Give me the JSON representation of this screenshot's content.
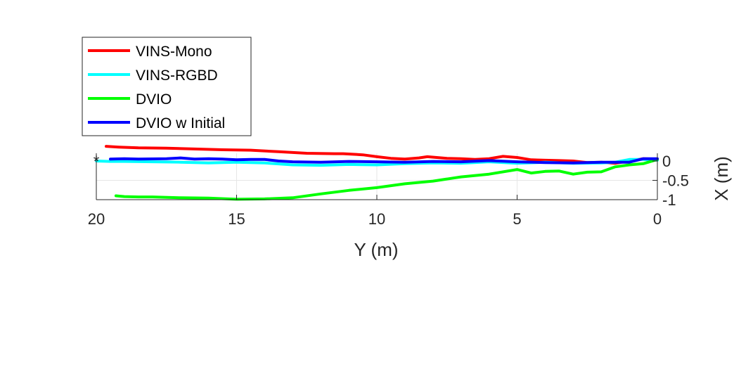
{
  "chart_data": {
    "type": "line",
    "title": "",
    "xlabel": "Y (m)",
    "ylabel": "X (m)",
    "x_reversed": true,
    "y_axis_position": "right",
    "xlim": [
      0,
      20
    ],
    "ylim": [
      -1,
      0.2
    ],
    "xticks": [
      20,
      15,
      10,
      5,
      0
    ],
    "xtick_labels": [
      "20",
      "15",
      "10",
      "5",
      "0"
    ],
    "yticks": [
      0,
      -0.5,
      -1
    ],
    "ytick_labels": [
      "0",
      "-0.5",
      "-1"
    ],
    "grid": true,
    "legend_position": "top-left",
    "start_marker": {
      "symbol": "*",
      "x": 20,
      "y": 0
    },
    "series": [
      {
        "name": "VINS-Mono",
        "color": "#ff0000",
        "x": [
          19.65,
          19.2,
          18.5,
          17.5,
          16.5,
          15.5,
          14.5,
          13.5,
          12.5,
          11.5,
          11.2,
          10.5,
          10.0,
          9.5,
          9.0,
          8.5,
          8.2,
          7.5,
          7.0,
          6.5,
          6.0,
          5.5,
          5.0,
          4.5,
          4.0,
          3.5,
          3.0,
          2.5,
          2.0,
          1.5,
          1.0,
          0.5,
          0.0
        ],
        "y": [
          0.38,
          0.36,
          0.34,
          0.33,
          0.31,
          0.29,
          0.28,
          0.24,
          0.2,
          0.19,
          0.19,
          0.16,
          0.11,
          0.07,
          0.05,
          0.08,
          0.11,
          0.07,
          0.06,
          0.04,
          0.06,
          0.12,
          0.09,
          0.03,
          0.02,
          0.01,
          0.0,
          -0.04,
          -0.03,
          -0.06,
          0.0,
          0.06,
          0.05
        ]
      },
      {
        "name": "VINS-RGBD",
        "color": "#00ffff",
        "x": [
          20.0,
          19.5,
          19.0,
          18.0,
          17.0,
          16.0,
          15.0,
          14.0,
          13.0,
          12.0,
          11.0,
          10.0,
          9.0,
          8.0,
          7.0,
          6.0,
          5.0,
          4.0,
          3.0,
          2.0,
          1.5,
          1.0,
          0.5,
          0.0
        ],
        "y": [
          0.0,
          -0.01,
          -0.01,
          -0.02,
          -0.03,
          -0.05,
          -0.03,
          -0.05,
          -0.1,
          -0.11,
          -0.09,
          -0.1,
          -0.07,
          -0.05,
          -0.06,
          -0.02,
          -0.06,
          -0.03,
          -0.06,
          -0.05,
          -0.03,
          0.04,
          0.04,
          0.02
        ]
      },
      {
        "name": "DVIO",
        "color": "#00ff00",
        "x": [
          19.3,
          19.0,
          18.5,
          18.0,
          17.0,
          16.0,
          15.0,
          14.0,
          13.0,
          12.0,
          11.0,
          10.0,
          9.0,
          8.0,
          7.0,
          6.0,
          5.0,
          4.5,
          4.0,
          3.5,
          3.0,
          2.5,
          2.0,
          1.5,
          1.0,
          0.5,
          0.0
        ],
        "y": [
          -0.9,
          -0.92,
          -0.93,
          -0.93,
          -0.95,
          -0.96,
          -0.99,
          -0.98,
          -0.95,
          -0.85,
          -0.76,
          -0.69,
          -0.59,
          -0.52,
          -0.41,
          -0.34,
          -0.22,
          -0.31,
          -0.27,
          -0.26,
          -0.34,
          -0.29,
          -0.28,
          -0.15,
          -0.1,
          -0.07,
          0.04
        ]
      },
      {
        "name": "DVIO w Initial",
        "color": "#0000ff",
        "x": [
          19.5,
          19.0,
          18.5,
          17.5,
          17.0,
          16.5,
          16.0,
          15.5,
          15.0,
          14.5,
          14.0,
          13.5,
          13.0,
          12.0,
          11.0,
          10.0,
          9.0,
          8.0,
          7.0,
          6.0,
          5.0,
          4.0,
          3.0,
          2.0,
          1.0,
          0.5,
          0.0
        ],
        "y": [
          0.05,
          0.06,
          0.05,
          0.06,
          0.08,
          0.05,
          0.06,
          0.05,
          0.03,
          0.04,
          0.04,
          0.0,
          -0.02,
          -0.03,
          -0.01,
          -0.02,
          -0.03,
          -0.01,
          -0.02,
          0.01,
          -0.02,
          -0.04,
          -0.05,
          -0.03,
          -0.03,
          0.06,
          0.06
        ]
      }
    ]
  }
}
